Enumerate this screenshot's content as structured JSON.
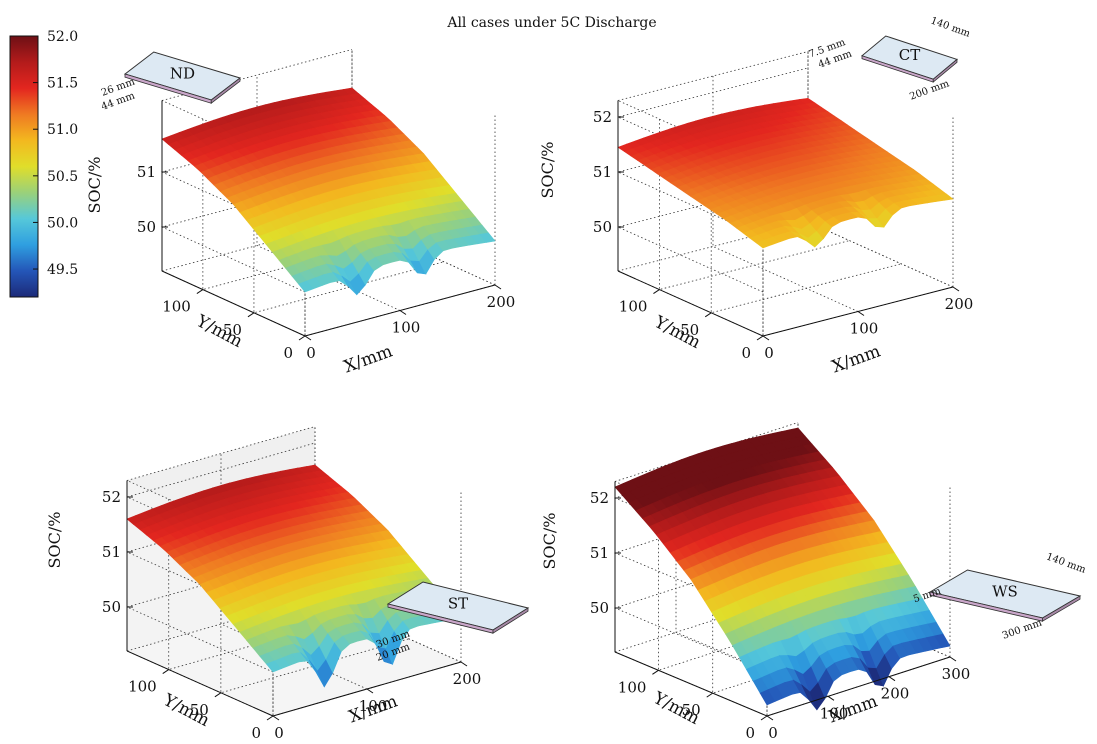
{
  "figure": {
    "title": "All cases under 5C Discharge"
  },
  "colorbar": {
    "range": [
      49.2,
      52.0
    ],
    "ticks": [
      "52.0",
      "51.5",
      "51.0",
      "50.5",
      "50.0",
      "49.5"
    ],
    "tick_values": [
      52.0,
      51.5,
      51.0,
      50.5,
      50.0,
      49.5
    ],
    "colormap": [
      "#1c2a78",
      "#2456b8",
      "#2f9fe0",
      "#56c8d9",
      "#9ad17a",
      "#e0de2a",
      "#f3b81f",
      "#ef7a22",
      "#e3261f",
      "#b31b1b",
      "#6e1015"
    ]
  },
  "chart_data": [
    {
      "type": "surface3d",
      "case": "ND",
      "title": "",
      "xlabel": "X/mm",
      "ylabel": "Y/mm",
      "zlabel": "SOC/%",
      "xlim": [
        0,
        200
      ],
      "ylim": [
        0,
        140
      ],
      "zlim": [
        49.2,
        52.0
      ],
      "xticks": [
        "0",
        "100",
        "200"
      ],
      "yticks": [
        "0",
        "50",
        "100"
      ],
      "zticks": [
        "50",
        "51"
      ],
      "soc_at_y": {
        "y": [
          0,
          35,
          70,
          105,
          140
        ],
        "soc": [
          50.0,
          50.5,
          51.0,
          51.35,
          51.6
        ]
      },
      "notch_depth": 0.25,
      "inset": {
        "label": "ND",
        "dims": [
          "26 mm",
          "44 mm"
        ]
      }
    },
    {
      "type": "surface3d",
      "case": "CT",
      "title": "",
      "xlabel": "X/mm",
      "ylabel": "Y/mm",
      "zlabel": "SOC/%",
      "xlim": [
        0,
        200
      ],
      "ylim": [
        0,
        140
      ],
      "zlim": [
        49.2,
        52.0
      ],
      "xticks": [
        "0",
        "100",
        "200"
      ],
      "yticks": [
        "0",
        "50",
        "100"
      ],
      "zticks": [
        "50",
        "51",
        "52"
      ],
      "soc_at_y": {
        "y": [
          0,
          35,
          70,
          105,
          140
        ],
        "soc": [
          50.8,
          51.0,
          51.15,
          51.3,
          51.45
        ]
      },
      "notch_depth": 0.2,
      "inset": {
        "label": "CT",
        "dims": [
          "140 mm",
          "7.5 mm",
          "44 mm",
          "200 mm"
        ]
      }
    },
    {
      "type": "surface3d",
      "case": "ST",
      "title": "",
      "xlabel": "X/mm",
      "ylabel": "Y/mm",
      "zlabel": "SOC/%",
      "xlim": [
        0,
        200
      ],
      "ylim": [
        0,
        140
      ],
      "zlim": [
        49.2,
        52.0
      ],
      "xticks": [
        "0",
        "100",
        "200"
      ],
      "yticks": [
        "0",
        "50",
        "100"
      ],
      "zticks": [
        "50",
        "51",
        "52"
      ],
      "soc_at_y": {
        "y": [
          0,
          35,
          70,
          105,
          140
        ],
        "soc": [
          50.0,
          50.5,
          51.0,
          51.35,
          51.6
        ]
      },
      "notch_depth": 0.4,
      "inset": {
        "label": "ST",
        "dims": [
          "30 mm",
          "20 mm"
        ]
      }
    },
    {
      "type": "surface3d",
      "case": "WS",
      "title": "",
      "xlabel": "X/mm",
      "ylabel": "Y/mm",
      "zlabel": "SOC/%",
      "xlim": [
        0,
        300
      ],
      "ylim": [
        0,
        140
      ],
      "zlim": [
        49.2,
        52.0
      ],
      "xticks": [
        "0",
        "100",
        "200",
        "300"
      ],
      "yticks": [
        "0",
        "50",
        "100"
      ],
      "zticks": [
        "50",
        "51",
        "52"
      ],
      "soc_at_y": {
        "y": [
          0,
          35,
          70,
          105,
          140
        ],
        "soc": [
          49.4,
          50.3,
          51.1,
          51.7,
          52.2
        ]
      },
      "notch_depth": 0.3,
      "inset": {
        "label": "WS",
        "dims": [
          "140 mm",
          "5 mm",
          "300 mm"
        ]
      }
    }
  ]
}
